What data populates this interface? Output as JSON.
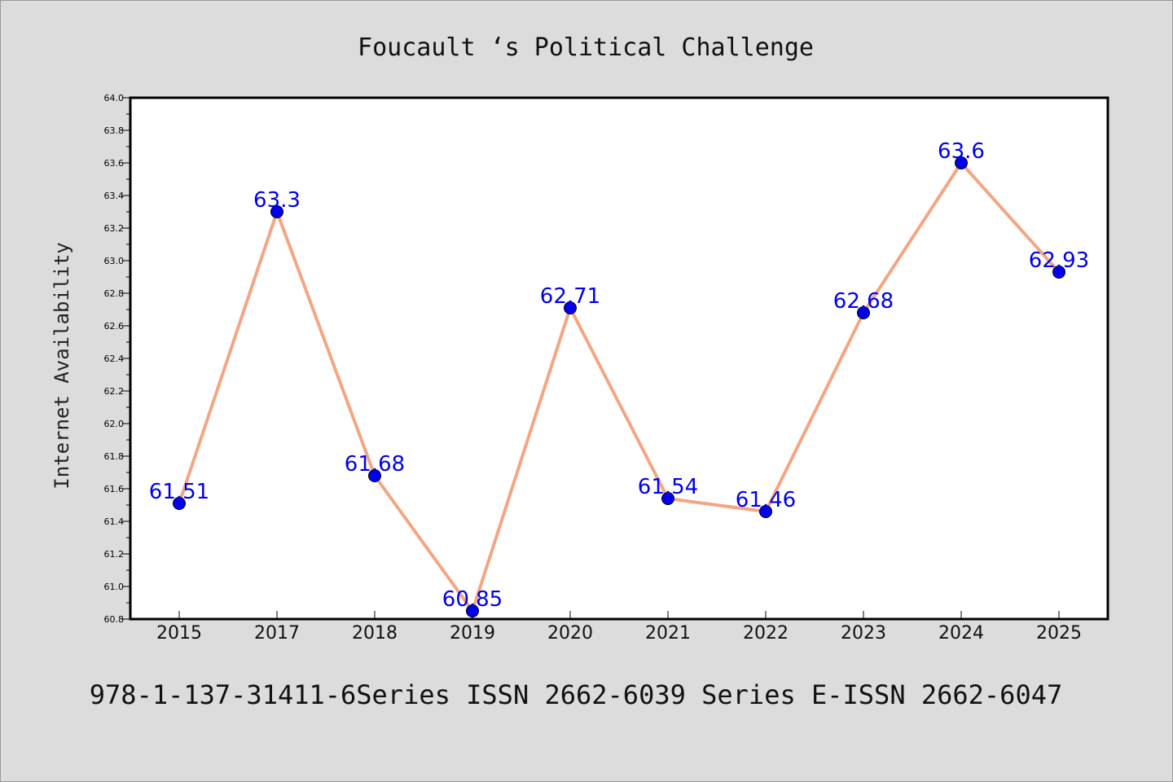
{
  "chart_data": {
    "type": "line",
    "title": "Foucault ‘s Political Challenge",
    "xlabel": "",
    "ylabel": "Internet Availability",
    "categories": [
      "2015",
      "2017",
      "2018",
      "2019",
      "2020",
      "2021",
      "2022",
      "2023",
      "2024",
      "2025"
    ],
    "series": [
      {
        "values": [
          61.51,
          63.3,
          61.68,
          60.85,
          62.71,
          61.54,
          61.46,
          62.68,
          63.6,
          62.93
        ]
      }
    ],
    "data_labels": [
      "61.51",
      "63.3",
      "61.68",
      "60.85",
      "62.71",
      "61.54",
      "61.46",
      "62.68",
      "63.6",
      "62.93"
    ],
    "ylim": [
      60.8,
      64.0
    ],
    "yticks": [
      "60.8",
      "61.0",
      "61.2",
      "61.4",
      "61.6",
      "61.8",
      "62.0",
      "62.2",
      "62.4",
      "62.6",
      "62.8",
      "63.0",
      "63.2",
      "63.4",
      "63.6",
      "63.8",
      "64.0"
    ],
    "grid": false,
    "legend": "none",
    "colors": {
      "line": "#f4a582",
      "marker": "#0000ee",
      "label": "#0000ee",
      "plot_background": "#ffffff",
      "figure_background": "#dcdcdc"
    }
  },
  "footer": "978-1-137-31411-6Series ISSN 2662-6039 Series E-ISSN 2662-6047"
}
